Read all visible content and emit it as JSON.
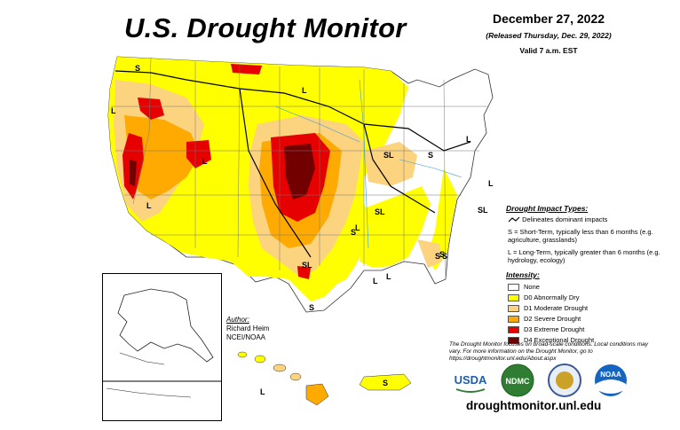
{
  "header": {
    "title": "U.S. Drought Monitor",
    "date": "December 27, 2022",
    "released": "(Released Thursday, Dec. 29, 2022)",
    "valid": "Valid 7 a.m. EST"
  },
  "impact": {
    "title": "Drought Impact Types:",
    "line_label": "Delineates dominant impacts",
    "short_term": "S = Short-Term, typically less than 6 months (e.g. agriculture, grasslands)",
    "long_term": "L = Long-Term, typically greater than 6 months (e.g. hydrology, ecology)"
  },
  "intensity": {
    "title": "Intensity:",
    "items": [
      {
        "label": "None",
        "color": "#ffffff"
      },
      {
        "label": "D0 Abnormally Dry",
        "color": "#ffff00"
      },
      {
        "label": "D1 Moderate Drought",
        "color": "#fcd37f"
      },
      {
        "label": "D2 Severe Drought",
        "color": "#ffaa00"
      },
      {
        "label": "D3 Extreme Drought",
        "color": "#e60000"
      },
      {
        "label": "D4 Exceptional Drought",
        "color": "#730000"
      }
    ]
  },
  "author": {
    "heading": "Author:",
    "name": "Richard Heim",
    "org": "NCEI/NOAA"
  },
  "note": "The Drought Monitor focuses on broad-scale conditions. Local conditions may vary. For more information on the Drought Monitor, go to https://droughtmonitor.unl.edu/About.aspx",
  "url": "droughtmonitor.unl.edu",
  "logos": [
    {
      "name": "USDA",
      "color": "#1f5fa8"
    },
    {
      "name": "NDMC",
      "color": "#2e7d32"
    },
    {
      "name": "seal",
      "color": "#3b5998"
    },
    {
      "name": "NOAA",
      "color": "#1565c0"
    }
  ],
  "map_labels": [
    "S",
    "L",
    "L",
    "L",
    "L",
    "SL",
    "SL",
    "S",
    "L",
    "S",
    "L",
    "S",
    "L",
    "S",
    "SL",
    "SL",
    "S",
    "L",
    "L",
    "L",
    "S"
  ]
}
